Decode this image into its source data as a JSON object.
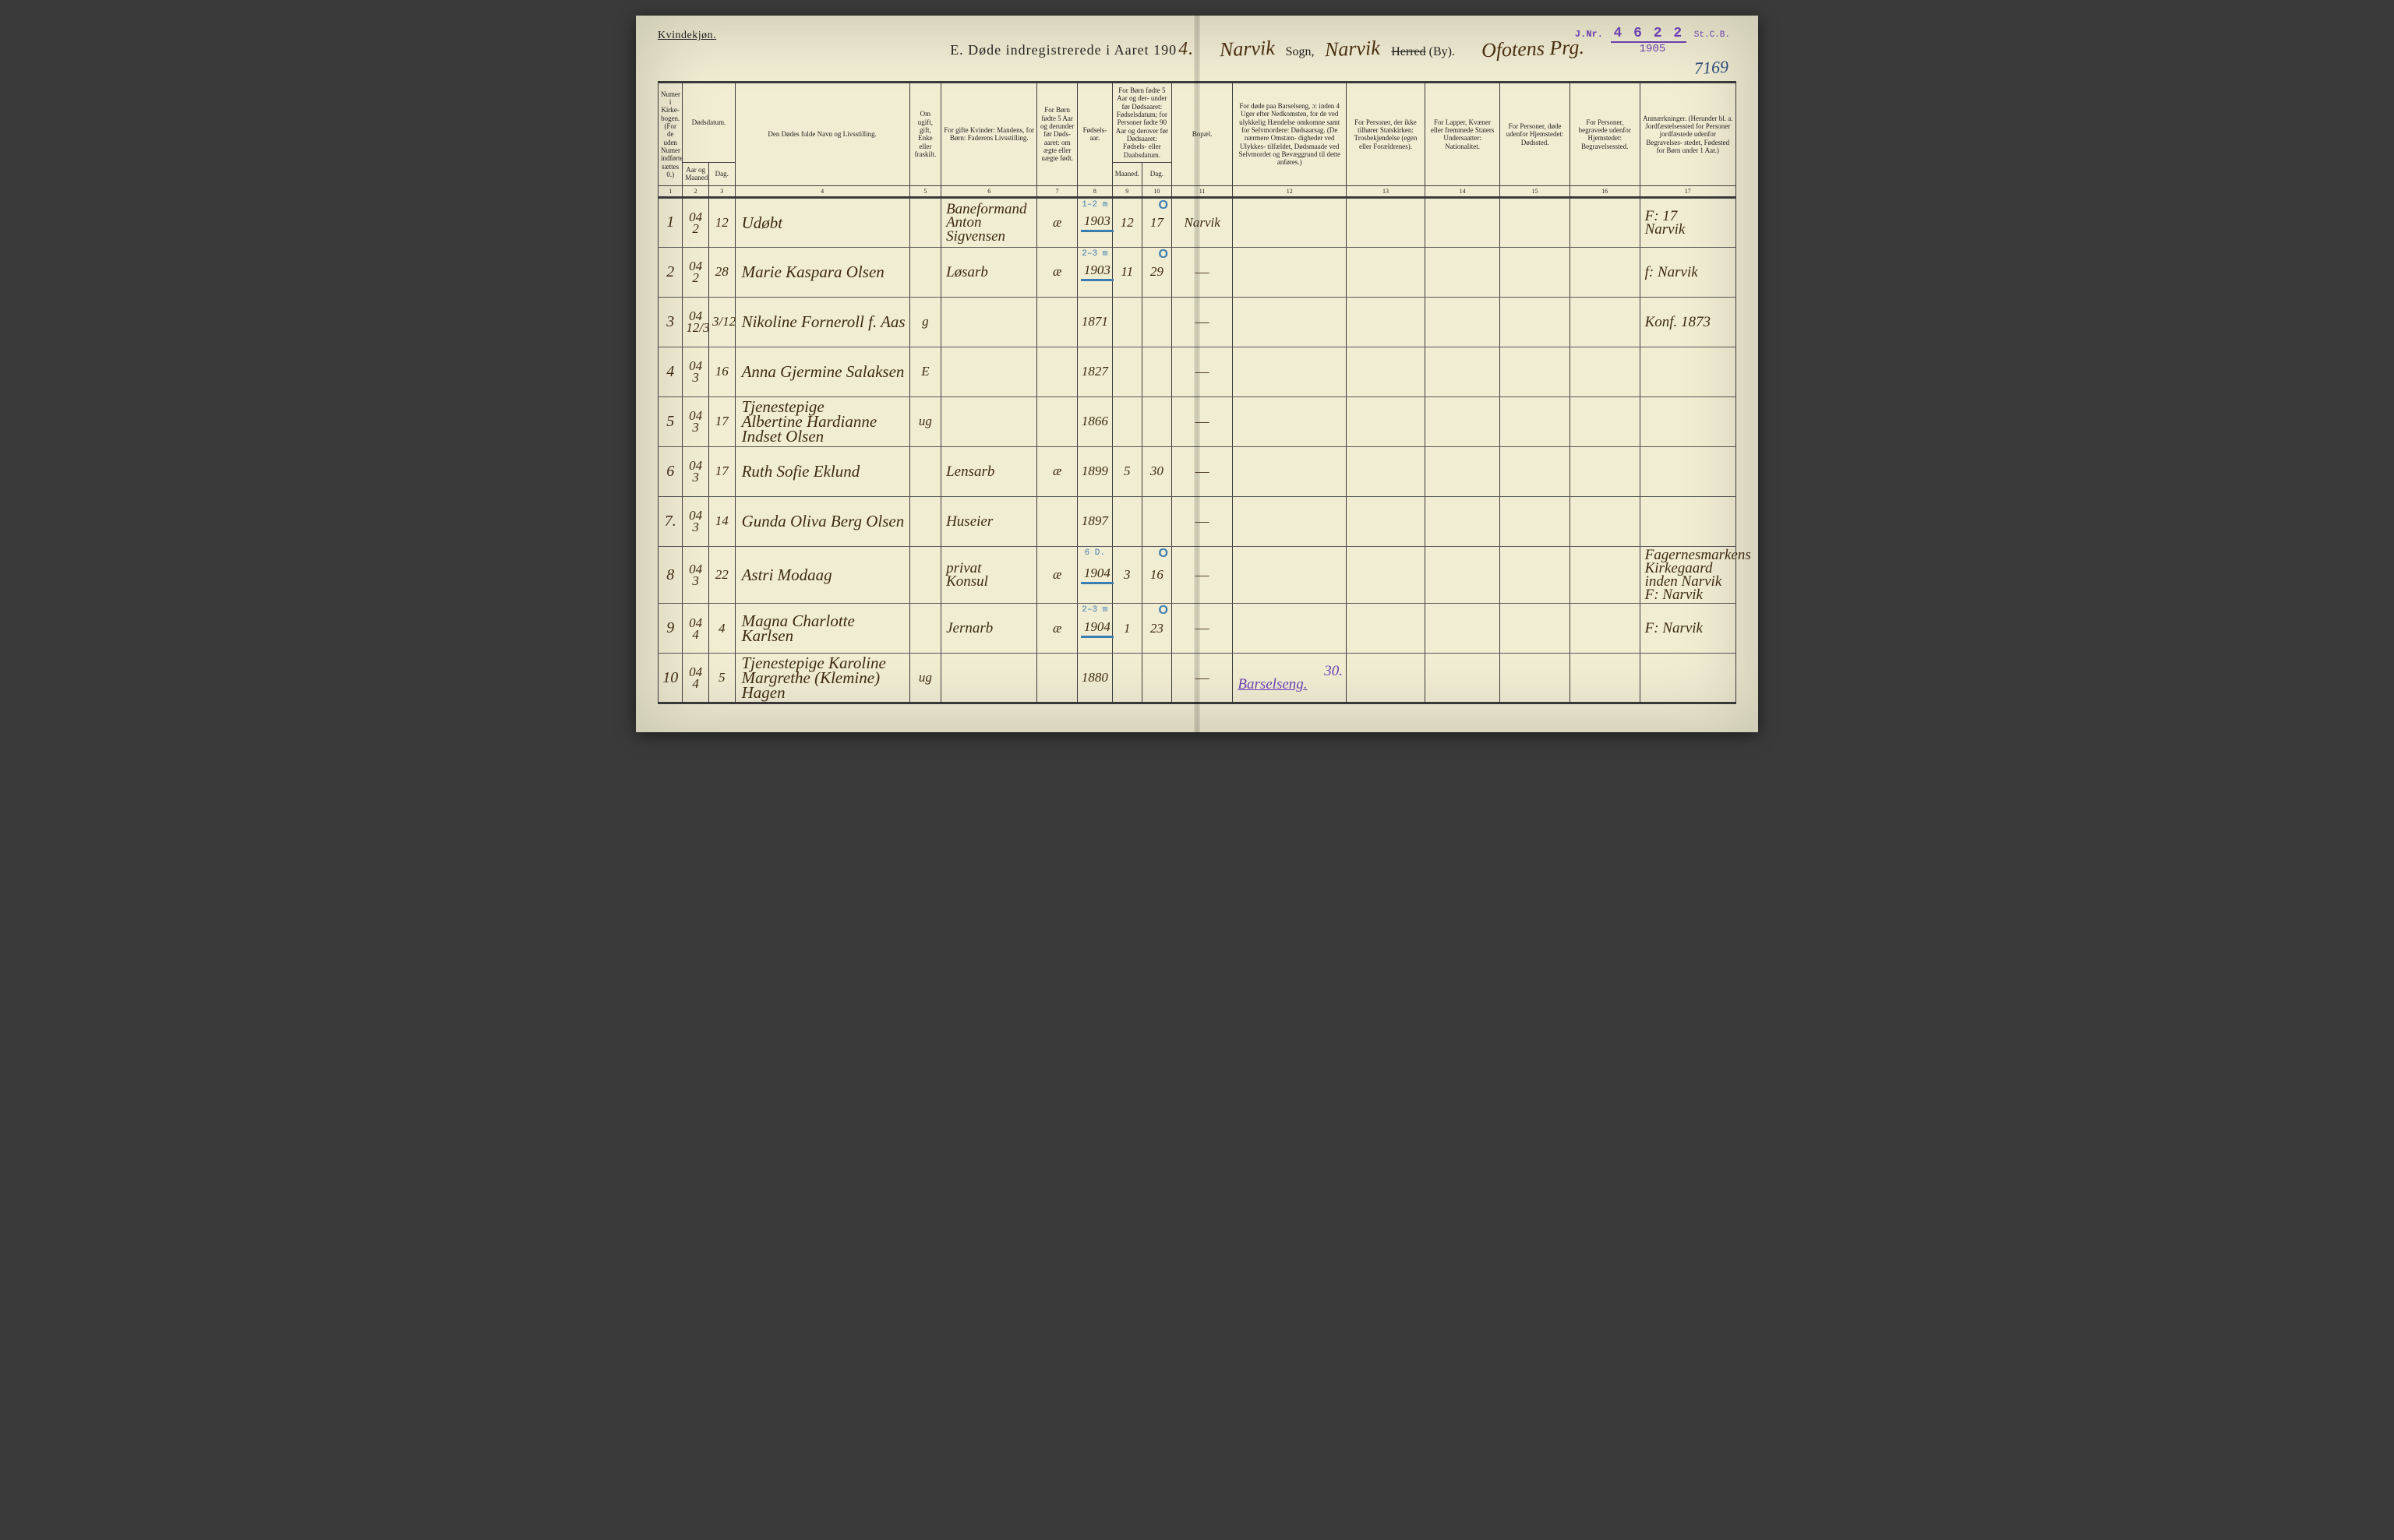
{
  "stamp": {
    "prefix": "J.Nr.",
    "number": "4 6 2 2",
    "suffix": "St.C.B.",
    "year": "1905"
  },
  "page_number_hw": "7169",
  "header": {
    "left": "Kvindekjøn.",
    "title_prefix": "E.  Døde indregistrerede i Aaret 190",
    "title_year_hw": "4.",
    "sogn_hw": "Narvik",
    "sogn_label": "Sogn,",
    "herred_hw": "Narvik",
    "herred_label_strike": "Herred",
    "herred_label_by": "(By).",
    "right_hw": "Ofotens Prg."
  },
  "columns": {
    "c1": "Numer\ni Kirke-\nbogen.\n(For de\nuden\nNumer\nindførte\nsættes\n0.)",
    "c2_top": "Dødsdatum.",
    "c2a": "Aar\nog\nMaaned.",
    "c2b": "Dag.",
    "c4": "Den Dødes fulde Navn og Livsstilling.",
    "c5": "Om\nugift,\ngift,\nEnke\neller\nfraskilt.",
    "c6": "For gifte Kvinder:\nMandens,\nfor Børn:\nFaderens Livsstilling.",
    "c7": "For Børn\nfødte\n5 Aar og\nderunder\nfør Døds-\naaret:\nom ægte\neller\nuægte\nfødt.",
    "c8": "Fødsels-\naar.",
    "c9_top": "For Børn fødte\n5 Aar og der-\nunder før\nDødsaaret:\nFødselsdatum;\nfor Personer\nfødte 90 Aar\nog derover før\nDødsaaret:\nFødsels- eller\nDaabsdatum.",
    "c9a": "Maaned.",
    "c9b": "Dag.",
    "c11": "Bopæl.",
    "c12": "For døde paa Barselseng,\nɔ: inden 4 Uger efter\nNedkomsten,\nfor de ved ulykkelig\nHændelse omkomne\nsamt for Selvmordere:\nDødsaarsag.\n(De nærmere Omstæn-\ndigheder ved Ulykkes-\ntilfældet, Dødsmaade ved\nSelvmordet og Bevæggrund\ntil dette anføres.)",
    "c13": "For Personer,\nder ikke tilhører\nStatskirken:\nTrosbekjendelse\n(egen eller Forældrenes).",
    "c14": "For Lapper, Kvæner\neller fremmede\nStaters Undersaatter:\nNationalitet.",
    "c15": "For Personer, døde\nudenfor Hjemstedet:\nDødssted.",
    "c16": "For Personer, begravede\nudenfor Hjemstedet:\nBegravelsessted.",
    "c17": "Anmærkninger.\n(Herunder bl. a.\nJordfæstelsessted for\nPersoner jordfæstede\nudenfor Begravelses-\nstedet, Fødested for\nBørn under 1 Aar.)",
    "nums": [
      "1",
      "2",
      "3",
      "4",
      "5",
      "6",
      "7",
      "8",
      "9",
      "10",
      "11",
      "12",
      "13",
      "14",
      "15",
      "16",
      "17"
    ]
  },
  "rows": [
    {
      "n": "1",
      "yr_mo_top": "04",
      "yr_mo": "2",
      "day": "12",
      "name": "Udøbt",
      "ugift": "",
      "livs_top": "Baneformand",
      "livs": "Anton Sigvensen",
      "egte": "æ",
      "faar": "1903",
      "fmo": "12",
      "fdag": "17",
      "bopal": "Narvik",
      "ann_top": "1–2 m",
      "zero": true,
      "underline_year": true,
      "anm_top": "F: 17",
      "anm": "Narvik"
    },
    {
      "n": "2",
      "yr_mo_top": "04",
      "yr_mo": "2",
      "day": "28",
      "name": "Marie Kaspara Olsen",
      "ugift": "",
      "livs": "Løsarb",
      "egte": "æ",
      "faar": "1903",
      "fmo": "11",
      "fdag": "29",
      "bopal": "—",
      "ann_top": "2–3 m",
      "zero": true,
      "underline_year": true,
      "anm": "f: Narvik"
    },
    {
      "n": "3",
      "yr_mo_top": "04",
      "yr_mo": "12/3",
      "day": "3/12",
      "name": "Nikoline Forneroll f. Aas",
      "ugift": "g",
      "livs": "",
      "egte": "",
      "faar": "1871",
      "fmo": "",
      "fdag": "",
      "bopal": "—",
      "anm": "Konf. 1873"
    },
    {
      "n": "4",
      "yr_mo_top": "04",
      "yr_mo": "3",
      "day": "16",
      "name": "Anna Gjermine Salaksen",
      "ugift": "E",
      "livs": "",
      "egte": "",
      "faar": "1827",
      "fmo": "",
      "fdag": "",
      "bopal": "—",
      "anm": ""
    },
    {
      "n": "5",
      "yr_mo_top": "04",
      "yr_mo": "3",
      "day": "17",
      "name_top": "Tjenestepige",
      "name": "Albertine Hardianne Indset Olsen",
      "ugift": "ug",
      "livs": "",
      "egte": "",
      "faar": "1866",
      "fmo": "",
      "fdag": "",
      "bopal": "—",
      "anm": ""
    },
    {
      "n": "6",
      "yr_mo_top": "04",
      "yr_mo": "3",
      "day": "17",
      "name": "Ruth Sofie Eklund",
      "ugift": "",
      "livs": "Lensarb",
      "egte": "æ",
      "faar": "1899",
      "fmo": "5",
      "fdag": "30",
      "bopal": "—",
      "anm": ""
    },
    {
      "n": "7.",
      "yr_mo_top": "04",
      "yr_mo": "3",
      "day": "14",
      "name": "Gunda Oliva Berg Olsen",
      "ugift": "",
      "livs": "Huseier",
      "egte": "",
      "faar": "1897",
      "fmo": "",
      "fdag": "",
      "bopal": "—",
      "anm": ""
    },
    {
      "n": "8",
      "yr_mo_top": "04",
      "yr_mo": "3",
      "day": "22",
      "name": "Astri Modaag",
      "ugift": "",
      "livs_top": "privat",
      "livs": "Konsul",
      "egte": "æ",
      "faar": "1904",
      "fmo": "3",
      "fdag": "16",
      "bopal": "—",
      "ann_top": "6 D.",
      "zero": true,
      "underline_year": true,
      "anm_top": "Fagernesmarkens",
      "anm": "Kirkegaard",
      "anm_bot": "inden Narvik  F: Narvik"
    },
    {
      "n": "9",
      "yr_mo_top": "04",
      "yr_mo": "4",
      "day": "4",
      "name": "Magna Charlotte Karlsen",
      "ugift": "",
      "livs": "Jernarb",
      "egte": "æ",
      "faar": "1904",
      "fmo": "1",
      "fdag": "23",
      "bopal": "—",
      "ann_top": "2–3 m",
      "zero": true,
      "underline_year": true,
      "anm": "F: Narvik"
    },
    {
      "n": "10",
      "yr_mo_top": "04",
      "yr_mo": "4",
      "day": "5",
      "name_top": "Tjenestepige Karoline",
      "name": "Margrethe (Klemine) Hagen",
      "ugift": "ug",
      "livs": "",
      "egte": "",
      "faar": "1880",
      "fmo": "",
      "fdag": "",
      "bopal": "—",
      "cause": "Barselseng.",
      "cause_top": "30.",
      "anm": ""
    }
  ]
}
